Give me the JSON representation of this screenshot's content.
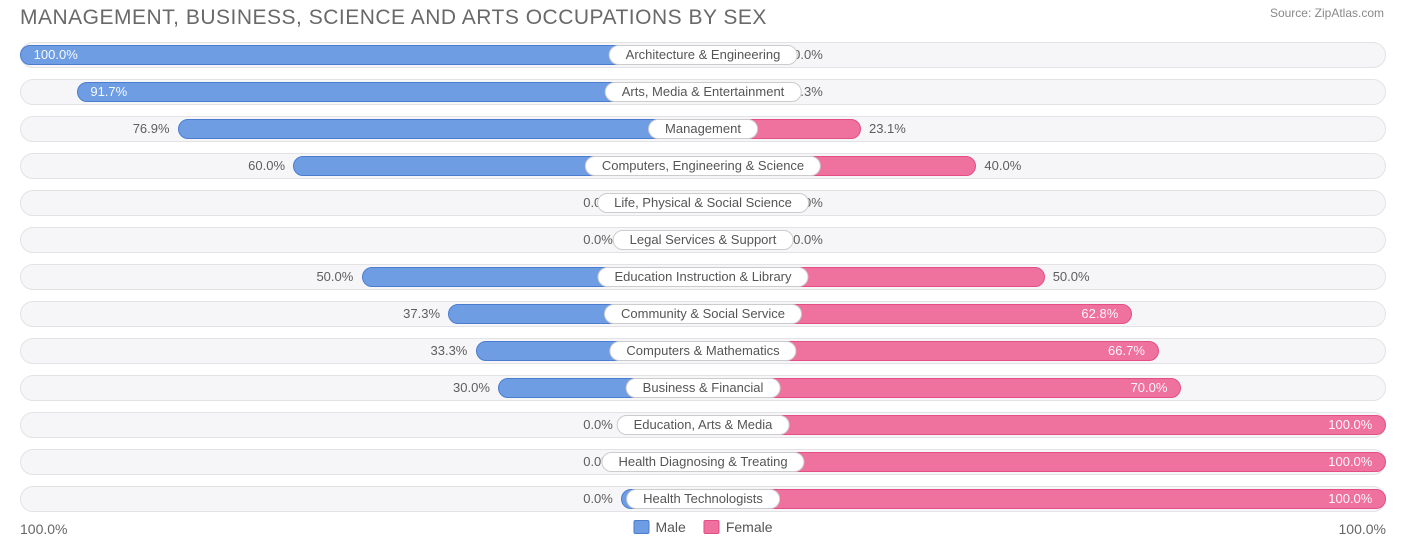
{
  "title": "MANAGEMENT, BUSINESS, SCIENCE AND ARTS OCCUPATIONS BY SEX",
  "source_label": "Source: ZipAtlas.com",
  "chart": {
    "type": "diverging-bar",
    "male_color": "#6e9de4",
    "male_stroke": "#4b7dcf",
    "female_color": "#ef719e",
    "female_stroke": "#e34e84",
    "row_bg": "#f6f6f8",
    "row_border": "#e3e3e6",
    "label_bg": "#ffffff",
    "label_border": "#cccccc",
    "text_color": "#555555",
    "min_bar_pct": 12,
    "rows": [
      {
        "category": "Architecture & Engineering",
        "male": 100.0,
        "female": 0.0,
        "male_label": "100.0%",
        "female_label": "0.0%"
      },
      {
        "category": "Arts, Media & Entertainment",
        "male": 91.7,
        "female": 8.3,
        "male_label": "91.7%",
        "female_label": "8.3%"
      },
      {
        "category": "Management",
        "male": 76.9,
        "female": 23.1,
        "male_label": "76.9%",
        "female_label": "23.1%"
      },
      {
        "category": "Computers, Engineering & Science",
        "male": 60.0,
        "female": 40.0,
        "male_label": "60.0%",
        "female_label": "40.0%"
      },
      {
        "category": "Life, Physical & Social Science",
        "male": 0.0,
        "female": 0.0,
        "male_label": "0.0%",
        "female_label": "0.0%"
      },
      {
        "category": "Legal Services & Support",
        "male": 0.0,
        "female": 0.0,
        "male_label": "0.0%",
        "female_label": "0.0%"
      },
      {
        "category": "Education Instruction & Library",
        "male": 50.0,
        "female": 50.0,
        "male_label": "50.0%",
        "female_label": "50.0%"
      },
      {
        "category": "Community & Social Service",
        "male": 37.3,
        "female": 62.8,
        "male_label": "37.3%",
        "female_label": "62.8%"
      },
      {
        "category": "Computers & Mathematics",
        "male": 33.3,
        "female": 66.7,
        "male_label": "33.3%",
        "female_label": "66.7%"
      },
      {
        "category": "Business & Financial",
        "male": 30.0,
        "female": 70.0,
        "male_label": "30.0%",
        "female_label": "70.0%"
      },
      {
        "category": "Education, Arts & Media",
        "male": 0.0,
        "female": 100.0,
        "male_label": "0.0%",
        "female_label": "100.0%"
      },
      {
        "category": "Health Diagnosing & Treating",
        "male": 0.0,
        "female": 100.0,
        "male_label": "0.0%",
        "female_label": "100.0%"
      },
      {
        "category": "Health Technologists",
        "male": 0.0,
        "female": 100.0,
        "male_label": "0.0%",
        "female_label": "100.0%"
      }
    ]
  },
  "axis": {
    "left": "100.0%",
    "right": "100.0%"
  },
  "legend": {
    "male": "Male",
    "female": "Female"
  }
}
